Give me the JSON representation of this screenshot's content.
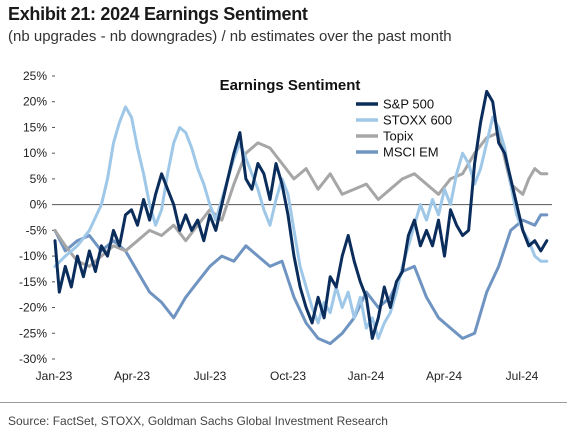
{
  "exhibit": {
    "title": "Exhibit 21: 2024 Earnings Sentiment",
    "subtitle": "(nb upgrades - nb downgrades) / nb estimates over the past month",
    "source": "Source: FactSet, STOXX, Goldman Sachs Global Investment Research"
  },
  "chart_data": {
    "type": "line",
    "title": "Earnings Sentiment",
    "xlabel": "",
    "ylabel": "",
    "x_ticks": [
      "Jan-23",
      "Apr-23",
      "Jul-23",
      "Oct-23",
      "Jan-24",
      "Apr-24",
      "Jul-24"
    ],
    "y_ticks": [
      "25%",
      "20%",
      "15%",
      "10%",
      "5%",
      "0%",
      "-5%",
      "-10%",
      "-15%",
      "-20%",
      "-25%",
      "-30%"
    ],
    "ylim": [
      -30,
      25
    ],
    "y_unit": "%",
    "x_range": [
      "2023-01-01",
      "2024-08-01"
    ],
    "grid": false,
    "legend_position": "top-right",
    "series": [
      {
        "name": "S&P 500",
        "color": "#0b2d5c",
        "points": [
          [
            "2023-01-01",
            -7
          ],
          [
            "2023-01-06",
            -17
          ],
          [
            "2023-01-13",
            -12
          ],
          [
            "2023-01-20",
            -16
          ],
          [
            "2023-01-27",
            -10
          ],
          [
            "2023-02-03",
            -14
          ],
          [
            "2023-02-10",
            -9
          ],
          [
            "2023-02-17",
            -13
          ],
          [
            "2023-02-24",
            -8
          ],
          [
            "2023-03-03",
            -10
          ],
          [
            "2023-03-10",
            -5
          ],
          [
            "2023-03-17",
            -8
          ],
          [
            "2023-03-24",
            -2
          ],
          [
            "2023-03-31",
            -1
          ],
          [
            "2023-04-07",
            -4
          ],
          [
            "2023-04-14",
            1
          ],
          [
            "2023-04-21",
            -3
          ],
          [
            "2023-04-28",
            2
          ],
          [
            "2023-05-05",
            6
          ],
          [
            "2023-05-12",
            3
          ],
          [
            "2023-05-19",
            0
          ],
          [
            "2023-05-26",
            -5
          ],
          [
            "2023-06-02",
            -2
          ],
          [
            "2023-06-09",
            -5
          ],
          [
            "2023-06-16",
            -3
          ],
          [
            "2023-06-23",
            -7
          ],
          [
            "2023-06-30",
            -2
          ],
          [
            "2023-07-07",
            -5
          ],
          [
            "2023-07-14",
            0
          ],
          [
            "2023-07-21",
            5
          ],
          [
            "2023-07-28",
            10
          ],
          [
            "2023-08-04",
            14
          ],
          [
            "2023-08-11",
            5
          ],
          [
            "2023-08-18",
            3
          ],
          [
            "2023-08-25",
            8
          ],
          [
            "2023-09-01",
            6
          ],
          [
            "2023-09-08",
            1
          ],
          [
            "2023-09-15",
            8
          ],
          [
            "2023-09-22",
            4
          ],
          [
            "2023-09-29",
            -2
          ],
          [
            "2023-10-06",
            -10
          ],
          [
            "2023-10-13",
            -16
          ],
          [
            "2023-10-20",
            -20
          ],
          [
            "2023-10-27",
            -23
          ],
          [
            "2023-11-03",
            -18
          ],
          [
            "2023-11-10",
            -22
          ],
          [
            "2023-11-17",
            -14
          ],
          [
            "2023-11-24",
            -16
          ],
          [
            "2023-12-01",
            -10
          ],
          [
            "2023-12-08",
            -6
          ],
          [
            "2023-12-15",
            -11
          ],
          [
            "2023-12-22",
            -15
          ],
          [
            "2023-12-29",
            -18
          ],
          [
            "2024-01-05",
            -26
          ],
          [
            "2024-01-12",
            -22
          ],
          [
            "2024-01-19",
            -16
          ],
          [
            "2024-01-26",
            -20
          ],
          [
            "2024-02-02",
            -15
          ],
          [
            "2024-02-09",
            -13
          ],
          [
            "2024-02-16",
            -6
          ],
          [
            "2024-02-23",
            -3
          ],
          [
            "2024-03-01",
            -8
          ],
          [
            "2024-03-08",
            -5
          ],
          [
            "2024-03-15",
            -8
          ],
          [
            "2024-03-22",
            -3
          ],
          [
            "2024-03-29",
            -10
          ],
          [
            "2024-04-05",
            -1
          ],
          [
            "2024-04-12",
            -4
          ],
          [
            "2024-04-19",
            -6
          ],
          [
            "2024-04-26",
            -5
          ],
          [
            "2024-05-03",
            8
          ],
          [
            "2024-05-10",
            16
          ],
          [
            "2024-05-17",
            22
          ],
          [
            "2024-05-24",
            20
          ],
          [
            "2024-05-31",
            12
          ],
          [
            "2024-06-07",
            10
          ],
          [
            "2024-06-14",
            5
          ],
          [
            "2024-06-21",
            0
          ],
          [
            "2024-06-28",
            -5
          ],
          [
            "2024-07-05",
            -8
          ],
          [
            "2024-07-12",
            -7
          ],
          [
            "2024-07-19",
            -9
          ],
          [
            "2024-07-26",
            -7
          ]
        ]
      },
      {
        "name": "STOXX 600",
        "color": "#9fc8e8",
        "points": [
          [
            "2023-01-01",
            -12
          ],
          [
            "2023-01-13",
            -10
          ],
          [
            "2023-01-27",
            -8
          ],
          [
            "2023-02-10",
            -5
          ],
          [
            "2023-02-24",
            0
          ],
          [
            "2023-03-03",
            5
          ],
          [
            "2023-03-10",
            12
          ],
          [
            "2023-03-17",
            16
          ],
          [
            "2023-03-24",
            19
          ],
          [
            "2023-03-31",
            17
          ],
          [
            "2023-04-07",
            11
          ],
          [
            "2023-04-14",
            6
          ],
          [
            "2023-04-21",
            0
          ],
          [
            "2023-04-28",
            -4
          ],
          [
            "2023-05-05",
            -1
          ],
          [
            "2023-05-12",
            6
          ],
          [
            "2023-05-19",
            12
          ],
          [
            "2023-05-26",
            15
          ],
          [
            "2023-06-02",
            14
          ],
          [
            "2023-06-09",
            11
          ],
          [
            "2023-06-16",
            7
          ],
          [
            "2023-06-23",
            4
          ],
          [
            "2023-06-30",
            0
          ],
          [
            "2023-07-07",
            -3
          ],
          [
            "2023-07-14",
            1
          ],
          [
            "2023-07-21",
            5
          ],
          [
            "2023-07-28",
            9
          ],
          [
            "2023-08-04",
            12
          ],
          [
            "2023-08-11",
            9
          ],
          [
            "2023-08-18",
            6
          ],
          [
            "2023-08-25",
            3
          ],
          [
            "2023-09-01",
            -1
          ],
          [
            "2023-09-08",
            -4
          ],
          [
            "2023-09-15",
            1
          ],
          [
            "2023-09-22",
            5
          ],
          [
            "2023-09-29",
            2
          ],
          [
            "2023-10-06",
            -5
          ],
          [
            "2023-10-13",
            -12
          ],
          [
            "2023-10-20",
            -16
          ],
          [
            "2023-10-27",
            -20
          ],
          [
            "2023-11-03",
            -23
          ],
          [
            "2023-11-10",
            -19
          ],
          [
            "2023-11-17",
            -21
          ],
          [
            "2023-11-24",
            -16
          ],
          [
            "2023-12-01",
            -20
          ],
          [
            "2023-12-08",
            -17
          ],
          [
            "2023-12-15",
            -22
          ],
          [
            "2023-12-22",
            -18
          ],
          [
            "2023-12-29",
            -24
          ],
          [
            "2024-01-05",
            -22
          ],
          [
            "2024-01-12",
            -26
          ],
          [
            "2024-01-19",
            -23
          ],
          [
            "2024-01-26",
            -21
          ],
          [
            "2024-02-02",
            -17
          ],
          [
            "2024-02-09",
            -12
          ],
          [
            "2024-02-16",
            -8
          ],
          [
            "2024-02-23",
            -4
          ],
          [
            "2024-03-01",
            0
          ],
          [
            "2024-03-08",
            -3
          ],
          [
            "2024-03-15",
            1
          ],
          [
            "2024-03-22",
            -2
          ],
          [
            "2024-03-29",
            3
          ],
          [
            "2024-04-05",
            0
          ],
          [
            "2024-04-12",
            6
          ],
          [
            "2024-04-19",
            10
          ],
          [
            "2024-04-26",
            8
          ],
          [
            "2024-05-03",
            4
          ],
          [
            "2024-05-10",
            7
          ],
          [
            "2024-05-17",
            12
          ],
          [
            "2024-05-24",
            17
          ],
          [
            "2024-05-31",
            15
          ],
          [
            "2024-06-07",
            11
          ],
          [
            "2024-06-14",
            4
          ],
          [
            "2024-06-21",
            -2
          ],
          [
            "2024-06-28",
            -5
          ],
          [
            "2024-07-05",
            -7
          ],
          [
            "2024-07-12",
            -10
          ],
          [
            "2024-07-19",
            -11
          ],
          [
            "2024-07-26",
            -11
          ]
        ]
      },
      {
        "name": "Topix",
        "color": "#a6a6a6",
        "points": [
          [
            "2023-01-01",
            -5
          ],
          [
            "2023-01-13",
            -8
          ],
          [
            "2023-01-27",
            -11
          ],
          [
            "2023-02-10",
            -12
          ],
          [
            "2023-02-24",
            -10
          ],
          [
            "2023-03-10",
            -8
          ],
          [
            "2023-03-24",
            -9
          ],
          [
            "2023-04-07",
            -7
          ],
          [
            "2023-04-21",
            -5
          ],
          [
            "2023-05-05",
            -6
          ],
          [
            "2023-05-19",
            -4
          ],
          [
            "2023-06-02",
            -7
          ],
          [
            "2023-06-16",
            -4
          ],
          [
            "2023-06-30",
            -1
          ],
          [
            "2023-07-14",
            -3
          ],
          [
            "2023-07-28",
            4
          ],
          [
            "2023-08-11",
            10
          ],
          [
            "2023-08-25",
            12
          ],
          [
            "2023-09-08",
            11
          ],
          [
            "2023-09-22",
            8
          ],
          [
            "2023-10-06",
            5
          ],
          [
            "2023-10-20",
            7
          ],
          [
            "2023-11-03",
            3
          ],
          [
            "2023-11-17",
            6
          ],
          [
            "2023-12-01",
            2
          ],
          [
            "2023-12-15",
            3
          ],
          [
            "2023-12-29",
            4
          ],
          [
            "2024-01-12",
            1
          ],
          [
            "2024-01-26",
            3
          ],
          [
            "2024-02-09",
            5
          ],
          [
            "2024-02-23",
            6
          ],
          [
            "2024-03-08",
            4
          ],
          [
            "2024-03-22",
            2
          ],
          [
            "2024-04-05",
            5
          ],
          [
            "2024-04-19",
            6
          ],
          [
            "2024-05-03",
            10
          ],
          [
            "2024-05-17",
            13
          ],
          [
            "2024-05-31",
            14
          ],
          [
            "2024-06-14",
            4
          ],
          [
            "2024-06-28",
            2
          ],
          [
            "2024-07-05",
            5
          ],
          [
            "2024-07-12",
            7
          ],
          [
            "2024-07-19",
            6
          ],
          [
            "2024-07-26",
            6
          ]
        ]
      },
      {
        "name": "MSCI EM",
        "color": "#6f94c2",
        "points": [
          [
            "2023-01-01",
            -5
          ],
          [
            "2023-01-13",
            -9
          ],
          [
            "2023-01-27",
            -7
          ],
          [
            "2023-02-10",
            -6
          ],
          [
            "2023-02-24",
            -9
          ],
          [
            "2023-03-10",
            -7
          ],
          [
            "2023-03-24",
            -9
          ],
          [
            "2023-04-07",
            -13
          ],
          [
            "2023-04-21",
            -17
          ],
          [
            "2023-05-05",
            -19
          ],
          [
            "2023-05-19",
            -22
          ],
          [
            "2023-06-02",
            -18
          ],
          [
            "2023-06-16",
            -15
          ],
          [
            "2023-06-30",
            -12
          ],
          [
            "2023-07-14",
            -10
          ],
          [
            "2023-07-28",
            -11
          ],
          [
            "2023-08-11",
            -8
          ],
          [
            "2023-08-25",
            -10
          ],
          [
            "2023-09-08",
            -12
          ],
          [
            "2023-09-22",
            -11
          ],
          [
            "2023-10-06",
            -18
          ],
          [
            "2023-10-20",
            -23
          ],
          [
            "2023-11-03",
            -26
          ],
          [
            "2023-11-17",
            -27
          ],
          [
            "2023-12-01",
            -25
          ],
          [
            "2023-12-15",
            -22
          ],
          [
            "2023-12-29",
            -17
          ],
          [
            "2024-01-12",
            -20
          ],
          [
            "2024-01-26",
            -18
          ],
          [
            "2024-02-09",
            -13
          ],
          [
            "2024-02-23",
            -12
          ],
          [
            "2024-03-08",
            -18
          ],
          [
            "2024-03-22",
            -22
          ],
          [
            "2024-04-05",
            -24
          ],
          [
            "2024-04-19",
            -26
          ],
          [
            "2024-05-03",
            -25
          ],
          [
            "2024-05-17",
            -17
          ],
          [
            "2024-05-31",
            -12
          ],
          [
            "2024-06-14",
            -5
          ],
          [
            "2024-06-28",
            -3
          ],
          [
            "2024-07-12",
            -4
          ],
          [
            "2024-07-19",
            -2
          ],
          [
            "2024-07-26",
            -2
          ]
        ]
      }
    ]
  }
}
